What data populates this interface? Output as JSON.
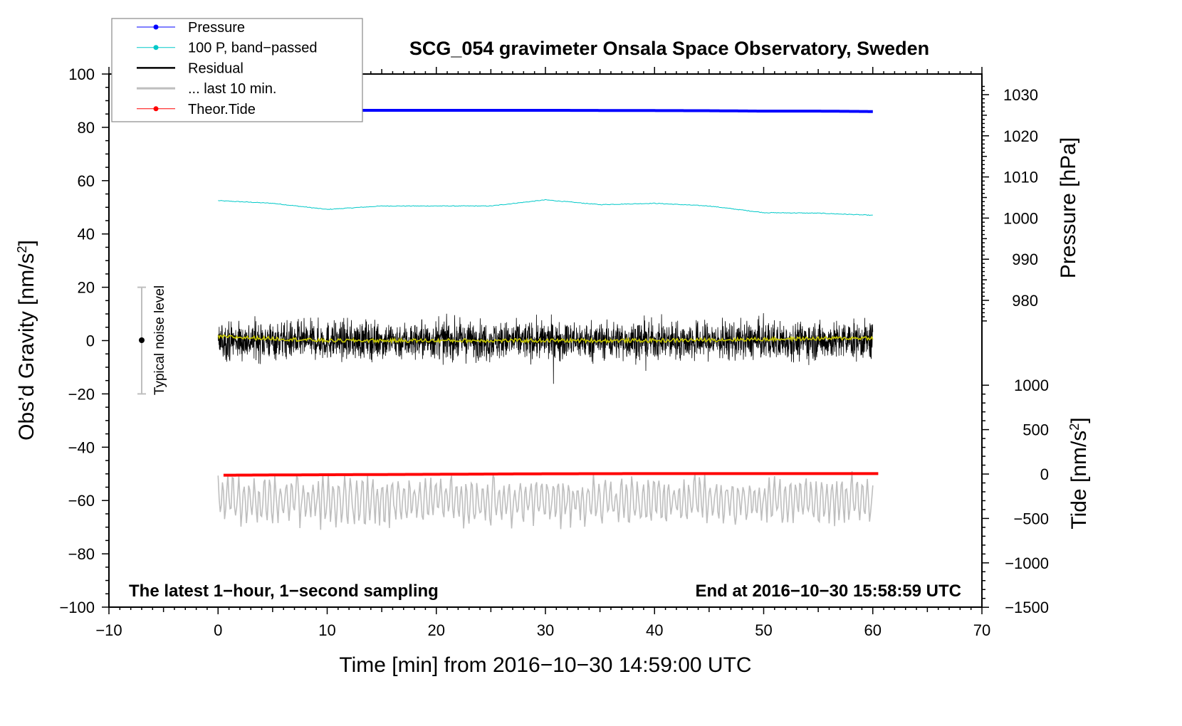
{
  "chart_data": {
    "type": "line",
    "title": "SCG_054 gravimeter Onsala Space Observatory, Sweden",
    "xlabel": "Time [min] from 2016−10−30 14:59:00 UTC",
    "ylabel_left": "Obs’d Gravity [nm/s",
    "ylabel_right_pressure": "Pressure [hPa]",
    "ylabel_right_tide": "Tide [nm/s",
    "superscript": "2",
    "bracket_close": "]",
    "xlim": [
      -10,
      70
    ],
    "ylim_left": [
      -100,
      100
    ],
    "pressure_range": [
      975,
      1032
    ],
    "tide_range": [
      -1500,
      1000
    ],
    "x_ticks": [
      "−10",
      "0",
      "10",
      "20",
      "30",
      "40",
      "50",
      "60",
      "70"
    ],
    "x_tick_values": [
      -10,
      0,
      10,
      20,
      30,
      40,
      50,
      60,
      70
    ],
    "y_left_ticks": [
      "100",
      "80",
      "60",
      "40",
      "20",
      "0",
      "−20",
      "−40",
      "−60",
      "−80",
      "−100"
    ],
    "y_left_tick_values": [
      100,
      80,
      60,
      40,
      20,
      0,
      -20,
      -40,
      -60,
      -80,
      -100
    ],
    "pressure_ticks": [
      "1030",
      "1020",
      "1010",
      "1000",
      "990",
      "980"
    ],
    "pressure_tick_values": [
      1030,
      1020,
      1010,
      1000,
      990,
      980
    ],
    "tide_ticks": [
      "1000",
      "500",
      "0",
      "−500",
      "−1000",
      "−1500"
    ],
    "tide_tick_values": [
      1000,
      500,
      0,
      -500,
      -1000,
      -1500
    ],
    "legend": [
      {
        "label": "Pressure",
        "color": "#0000ff",
        "marker": true
      },
      {
        "label": "100 P, band−passed",
        "color": "#00c8c8",
        "marker": true
      },
      {
        "label": "Residual",
        "color": "#000000",
        "marker": false
      },
      {
        "label": "... last 10 min.",
        "color": "#bebebe",
        "marker": false
      },
      {
        "label": "Theor.Tide",
        "color": "#ff0000",
        "marker": true
      }
    ],
    "legend_position": "top-left",
    "annotation_left": "The latest 1−hour, 1−second sampling",
    "annotation_right": "End at 2016−10−30 15:58:59 UTC",
    "noise_label": "Typical noise level",
    "noise_level": [
      -20,
      20
    ],
    "series": [
      {
        "name": "Pressure",
        "axis": "pressure",
        "color": "#0000ff",
        "x": [
          0,
          15,
          30,
          45,
          50,
          55,
          60
        ],
        "values": [
          1026.2,
          1026.2,
          1026.2,
          1026.1,
          1026.0,
          1026.0,
          1025.9
        ]
      },
      {
        "name": "100 P, band-passed",
        "axis": "left",
        "color": "#00c8c8",
        "x": [
          0,
          5,
          10,
          15,
          20,
          25,
          30,
          35,
          40,
          45,
          50,
          55,
          60
        ],
        "values": [
          52.5,
          51.5,
          49.2,
          50.5,
          50.5,
          50.5,
          52.8,
          51.0,
          51.5,
          50.5,
          48.0,
          47.8,
          47.0
        ]
      },
      {
        "name": "Residual",
        "axis": "left",
        "color": "#000000",
        "x": [
          0,
          60
        ],
        "values": [
          0,
          0
        ],
        "noise_amplitude": 10
      },
      {
        "name": "Residual smoothed",
        "axis": "left",
        "color": "#c8c800",
        "x": [
          0,
          10,
          20,
          30,
          40,
          50,
          60
        ],
        "values": [
          1.5,
          0,
          0,
          0,
          0,
          0.5,
          1
        ]
      },
      {
        "name": "... last 10 min.",
        "axis": "left",
        "color": "#bebebe",
        "x": [
          0,
          60
        ],
        "values": [
          -60,
          -60
        ],
        "noise_amplitude": 10
      },
      {
        "name": "Theor.Tide",
        "axis": "tide",
        "color": "#ff0000",
        "x": [
          0.5,
          10,
          20,
          30,
          40,
          50,
          60.5
        ],
        "values": [
          -13,
          -8,
          -3,
          3,
          5,
          5,
          5
        ]
      }
    ]
  }
}
